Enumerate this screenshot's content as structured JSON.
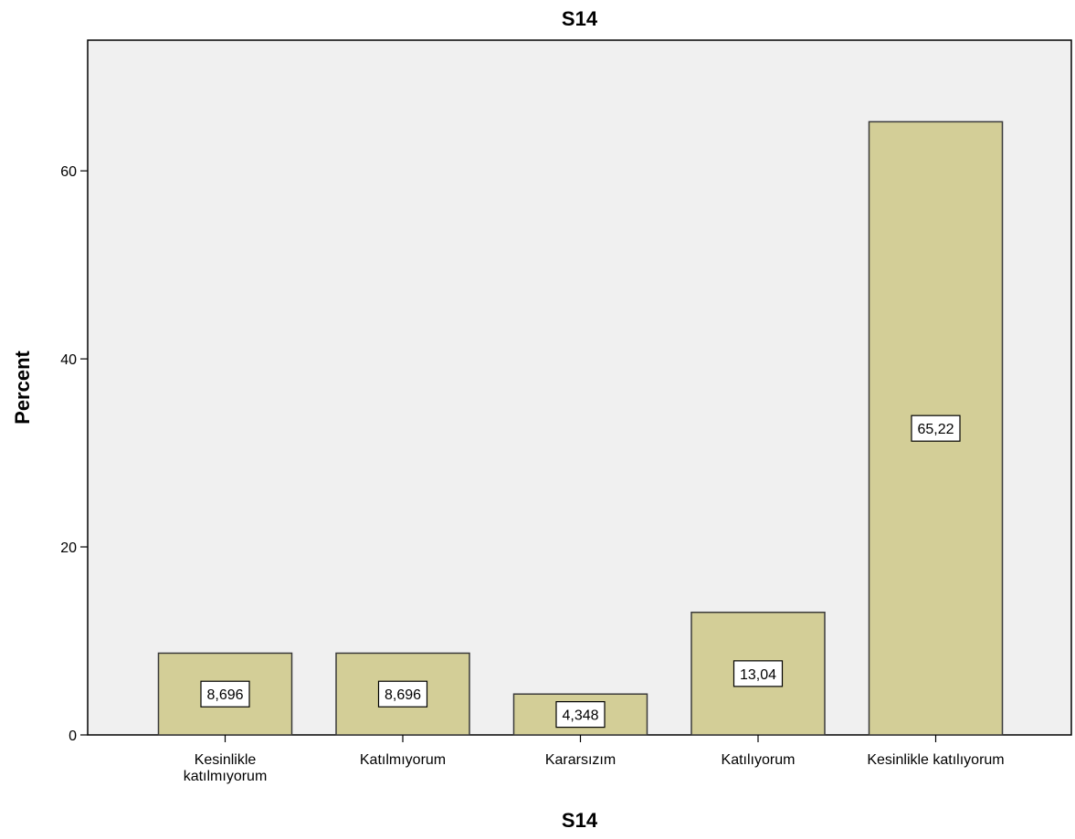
{
  "chart_data": {
    "type": "bar",
    "title": "S14",
    "xlabel": "S14",
    "ylabel": "Percent",
    "categories": [
      [
        "Kesinlikle",
        "katılmıyorum"
      ],
      [
        "Katılmıyorum"
      ],
      [
        "Kararsızım"
      ],
      [
        "Katılıyorum"
      ],
      [
        "Kesinlikle katılıyorum"
      ]
    ],
    "values": [
      8.696,
      8.696,
      4.348,
      13.04,
      65.22
    ],
    "data_labels": [
      "8,696",
      "8,696",
      "4,348",
      "13,04",
      "65,22"
    ],
    "yticks": [
      0,
      20,
      40,
      60
    ],
    "ytick_labels": [
      "0",
      "20",
      "40",
      "60"
    ],
    "ylim": [
      0,
      73.9
    ],
    "grid": false,
    "colors": {
      "plot_background": "#f0f0f0",
      "bar_fill": "#d3ce97",
      "bar_stroke": "#3a3a3a",
      "axis": "#000000",
      "label_box": "#ffffff"
    }
  }
}
